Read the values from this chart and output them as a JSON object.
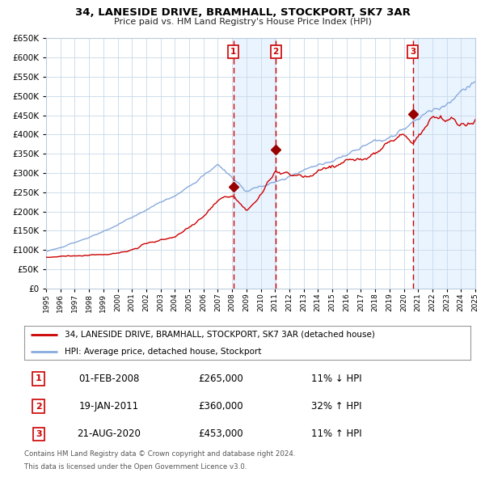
{
  "title": "34, LANESIDE DRIVE, BRAMHALL, STOCKPORT, SK7 3AR",
  "subtitle": "Price paid vs. HM Land Registry's House Price Index (HPI)",
  "hpi_label": "HPI: Average price, detached house, Stockport",
  "price_label": "34, LANESIDE DRIVE, BRAMHALL, STOCKPORT, SK7 3AR (detached house)",
  "transactions": [
    {
      "num": 1,
      "date": "01-FEB-2008",
      "year": 2008.08,
      "price": 265000,
      "pct": "11%",
      "dir": "↓",
      "rel": "HPI"
    },
    {
      "num": 2,
      "date": "19-JAN-2011",
      "year": 2011.05,
      "price": 360000,
      "pct": "32%",
      "dir": "↑",
      "rel": "HPI"
    },
    {
      "num": 3,
      "date": "21-AUG-2020",
      "year": 2020.63,
      "price": 453000,
      "pct": "11%",
      "dir": "↑",
      "rel": "HPI"
    }
  ],
  "price_color": "#cc0000",
  "hpi_color": "#88aadd",
  "vline_color": "#cc0000",
  "shade_color": "#ddeeff",
  "ylim": [
    0,
    650000
  ],
  "xlim_start": 1995,
  "xlim_end": 2025,
  "footer1": "Contains HM Land Registry data © Crown copyright and database right 2024.",
  "footer2": "This data is licensed under the Open Government Licence v3.0."
}
